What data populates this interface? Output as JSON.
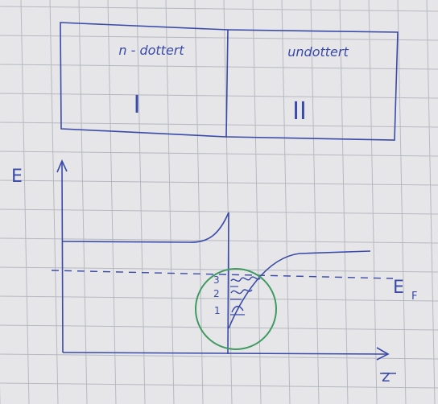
{
  "colors": {
    "paper": "#e6e6e8",
    "grid": "#b7b9c2",
    "ink": "#3a4aa8",
    "circle": "#3f9a62"
  },
  "regions": {
    "left": {
      "label": "n - dottert",
      "numeral": "I"
    },
    "right": {
      "label": "undottert",
      "numeral": "II"
    }
  },
  "diagram": {
    "y_axis_label": "E",
    "x_axis_label": "z",
    "fermi_label": "E",
    "fermi_subscript": "F",
    "subband_labels": [
      "1",
      "2",
      "3"
    ]
  }
}
